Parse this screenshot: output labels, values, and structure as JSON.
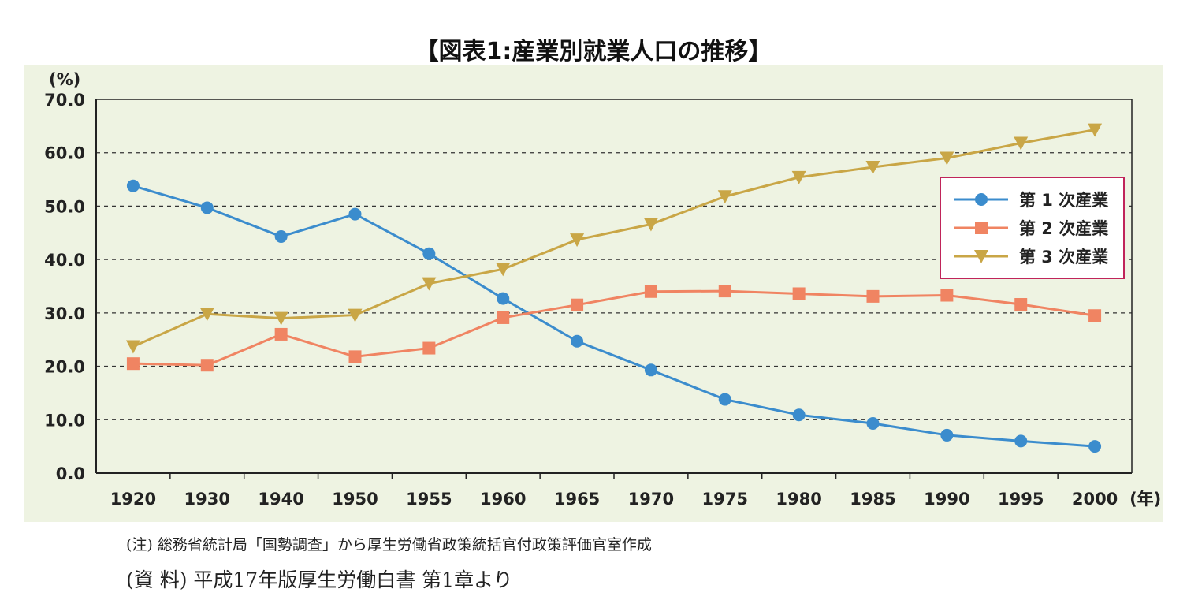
{
  "title": "【図表1:産業別就業人口の推移】",
  "note": "(注)    総務省統計局「国勢調査」から厚生労働省政策統括官付政策評価官室作成",
  "source": "(資 料) 平成17年版厚生労働白書 第1章より",
  "colors": {
    "panel_bg": "#eef3e2",
    "primary": "#3b8ccd",
    "secondary": "#f08462",
    "tertiary": "#c9a646",
    "legend_border": "#c0245a",
    "grid": "#333333"
  },
  "chart_data": {
    "type": "line",
    "title": "【図表1:産業別就業人口の推移】",
    "ylabel": "(%)",
    "xlabel_suffix": "(年)",
    "categories": [
      "1920",
      "1930",
      "1940",
      "1950",
      "1955",
      "1960",
      "1965",
      "1970",
      "1975",
      "1980",
      "1985",
      "1990",
      "1995",
      "2000"
    ],
    "ylim": [
      0,
      70
    ],
    "yticks": [
      "0.0",
      "10.0",
      "20.0",
      "30.0",
      "40.0",
      "50.0",
      "60.0",
      "70.0"
    ],
    "grid": "horizontal dashed",
    "legend_position": "right",
    "series": [
      {
        "name": "第 1 次産業",
        "marker": "circle",
        "values": [
          53.8,
          49.7,
          44.3,
          48.5,
          41.1,
          32.7,
          24.7,
          19.3,
          13.8,
          10.9,
          9.3,
          7.1,
          6.0,
          5.0
        ]
      },
      {
        "name": "第 2 次産業",
        "marker": "square",
        "values": [
          20.5,
          20.2,
          26.0,
          21.8,
          23.4,
          29.1,
          31.5,
          34.0,
          34.1,
          33.6,
          33.1,
          33.3,
          31.6,
          29.5
        ]
      },
      {
        "name": "第 3 次産業",
        "marker": "triangle-down",
        "values": [
          23.7,
          29.8,
          29.0,
          29.6,
          35.5,
          38.2,
          43.7,
          46.6,
          51.8,
          55.4,
          57.3,
          59.0,
          61.8,
          64.3
        ]
      }
    ]
  }
}
